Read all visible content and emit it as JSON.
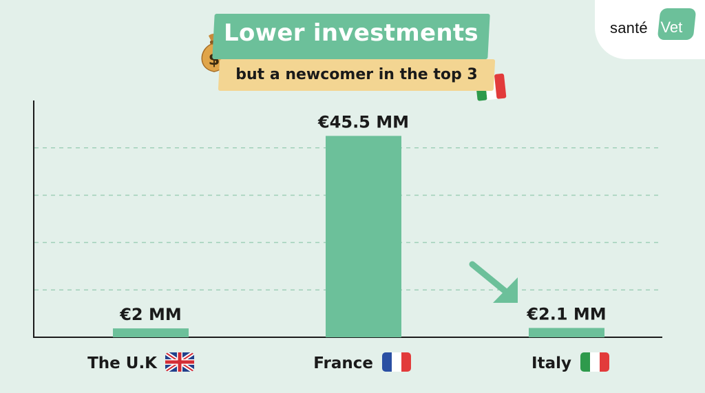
{
  "brand": {
    "logo_text": "santé",
    "logo_badge": "Vet"
  },
  "colors": {
    "background": "#e3f0ea",
    "bar": "#6cc09a",
    "title_box": "#6cc09a",
    "subtitle_box": "#f3d592",
    "gridline": "#9fcfb8",
    "axis": "#1a1a1a",
    "text": "#1a1a1a"
  },
  "icons": {
    "title_icon": "money-bag-icon",
    "subtitle_icon": "italy-flag-icon",
    "highlight": "arrow-down-right-icon"
  },
  "chart_data": {
    "type": "bar",
    "title": "Lower investments",
    "subtitle": "but a newcomer in the top 3",
    "categories": [
      "The U.K",
      "France",
      "Italy"
    ],
    "category_flags": [
      "uk-flag-icon",
      "france-flag-icon",
      "italy-flag-icon"
    ],
    "values": [
      2,
      45.5,
      2.1
    ],
    "data_labels": [
      "€2 MM",
      "€45.5 MM",
      "€2.1 MM"
    ],
    "unit": "€ MM",
    "ylim": [
      0,
      53.5
    ],
    "grid": true,
    "xlabel": "",
    "ylabel": "",
    "highlight_category": "Italy"
  }
}
